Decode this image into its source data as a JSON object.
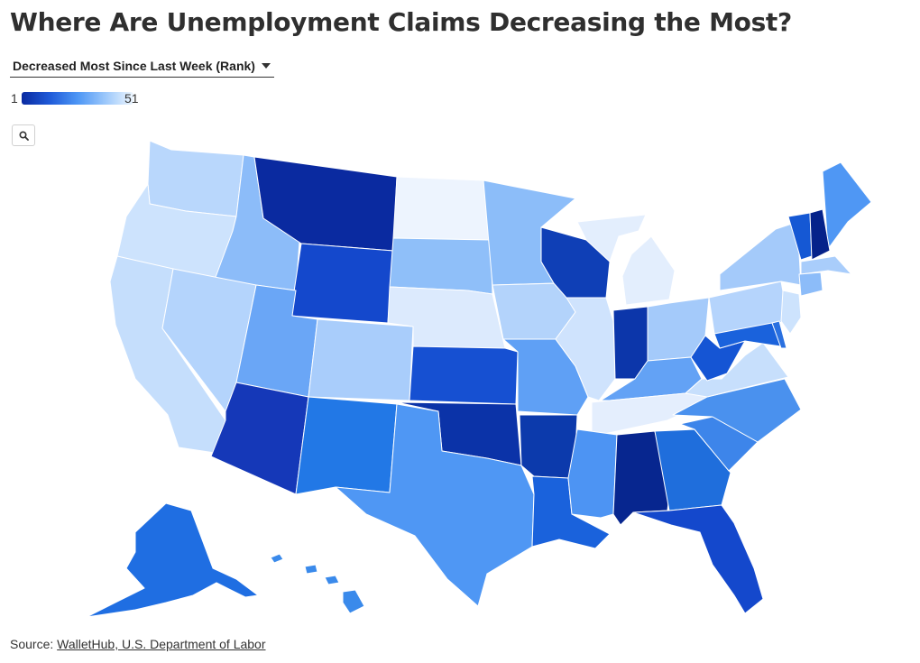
{
  "title": "Where Are Unemployment Claims Decreasing the Most?",
  "dropdown": {
    "selected": "Decreased Most Since Last Week (Rank)"
  },
  "legend": {
    "min": "1",
    "max": "51",
    "colors": [
      "#0a2aa0",
      "#1f5ad8",
      "#4d96f5",
      "#9cc8fb",
      "#eef6fe"
    ]
  },
  "search": {
    "icon": "magnifier-icon"
  },
  "source": {
    "label": "Source:",
    "link_text": "WalletHub, U.S. Department of Labor"
  },
  "map_data": {
    "type": "choropleth",
    "value_meaning": "rank (1 = decreased most)",
    "color_scale": [
      "#0a2aa0",
      "#1f5ad8",
      "#4d96f5",
      "#9cc8fb",
      "#eef6fe"
    ],
    "states": [
      {
        "id": "WA",
        "color": "#b9d7fc"
      },
      {
        "id": "OR",
        "color": "#cde3fd"
      },
      {
        "id": "CA",
        "color": "#c5defc"
      },
      {
        "id": "ID",
        "color": "#8cbcf9"
      },
      {
        "id": "NV",
        "color": "#b4d4fc"
      },
      {
        "id": "MT",
        "color": "#0a2aa0"
      },
      {
        "id": "WY",
        "color": "#1448cc"
      },
      {
        "id": "UT",
        "color": "#6aa6f6"
      },
      {
        "id": "AZ",
        "color": "#1538b8"
      },
      {
        "id": "CO",
        "color": "#a9cdfb"
      },
      {
        "id": "NM",
        "color": "#2278e6"
      },
      {
        "id": "ND",
        "color": "#edf4fe"
      },
      {
        "id": "SD",
        "color": "#8fbff9"
      },
      {
        "id": "NE",
        "color": "#dceafd"
      },
      {
        "id": "KS",
        "color": "#1650d2"
      },
      {
        "id": "OK",
        "color": "#0b33a8"
      },
      {
        "id": "TX",
        "color": "#4f97f4"
      },
      {
        "id": "MN",
        "color": "#8cbdf9"
      },
      {
        "id": "IA",
        "color": "#b3d3fb"
      },
      {
        "id": "MO",
        "color": "#5fa0f5"
      },
      {
        "id": "AR",
        "color": "#0c3aac"
      },
      {
        "id": "LA",
        "color": "#1a62dc"
      },
      {
        "id": "WI",
        "color": "#0f3fb6"
      },
      {
        "id": "IL",
        "color": "#cfe3fd"
      },
      {
        "id": "MI",
        "color": "#e3eefd"
      },
      {
        "id": "IN",
        "color": "#0c36aa"
      },
      {
        "id": "OH",
        "color": "#a4cafa"
      },
      {
        "id": "KY",
        "color": "#63a2f5"
      },
      {
        "id": "TN",
        "color": "#e4eefd"
      },
      {
        "id": "MS",
        "color": "#4d94f3"
      },
      {
        "id": "AL",
        "color": "#07268f"
      },
      {
        "id": "GA",
        "color": "#1f6edc"
      },
      {
        "id": "FL",
        "color": "#1448cc"
      },
      {
        "id": "SC",
        "color": "#3d85ea"
      },
      {
        "id": "NC",
        "color": "#4a91ee"
      },
      {
        "id": "VA",
        "color": "#c7dffc"
      },
      {
        "id": "WV",
        "color": "#1555d4"
      },
      {
        "id": "PA",
        "color": "#b5d4fc"
      },
      {
        "id": "NY",
        "color": "#a4cafa"
      },
      {
        "id": "ME",
        "color": "#4f97f4"
      },
      {
        "id": "VT",
        "color": "#1558d4"
      },
      {
        "id": "NH",
        "color": "#05228a"
      },
      {
        "id": "MA",
        "color": "#a9cdfb"
      },
      {
        "id": "CT",
        "color": "#8cbcf9"
      },
      {
        "id": "NJ",
        "color": "#cde3fd"
      },
      {
        "id": "MD",
        "color": "#1a62dc"
      },
      {
        "id": "DE",
        "color": "#2a70e0"
      },
      {
        "id": "AK",
        "color": "#1f6ee2"
      },
      {
        "id": "HI",
        "color": "#3a8aeb"
      }
    ]
  }
}
